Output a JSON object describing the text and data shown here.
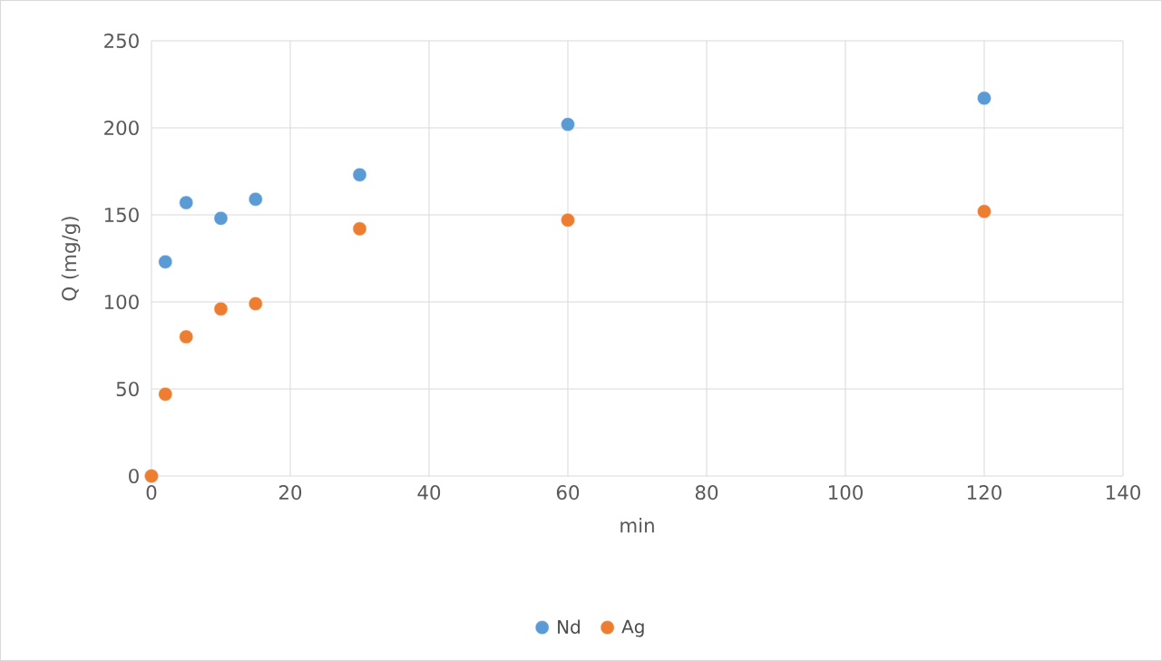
{
  "chart_data": {
    "type": "scatter",
    "xlabel": "min",
    "ylabel": "Q (mg/g)",
    "xlim": [
      0,
      140
    ],
    "xticks": [
      0,
      20,
      40,
      60,
      80,
      100,
      120,
      140
    ],
    "ylim": [
      0,
      250
    ],
    "yticks": [
      0,
      50,
      100,
      150,
      200,
      250
    ],
    "grid": true,
    "legend": "bottom",
    "marker": "circle",
    "series": [
      {
        "name": "Nd",
        "color": "#5b9bd5",
        "x": [
          0,
          2,
          5,
          10,
          15,
          30,
          60,
          120
        ],
        "values": [
          0,
          123,
          157,
          148,
          159,
          173,
          202,
          217
        ]
      },
      {
        "name": "Ag",
        "color": "#ed7d31",
        "x": [
          0,
          2,
          5,
          10,
          15,
          30,
          60,
          120
        ],
        "values": [
          0,
          47,
          80,
          96,
          99,
          142,
          147,
          152
        ]
      }
    ]
  }
}
